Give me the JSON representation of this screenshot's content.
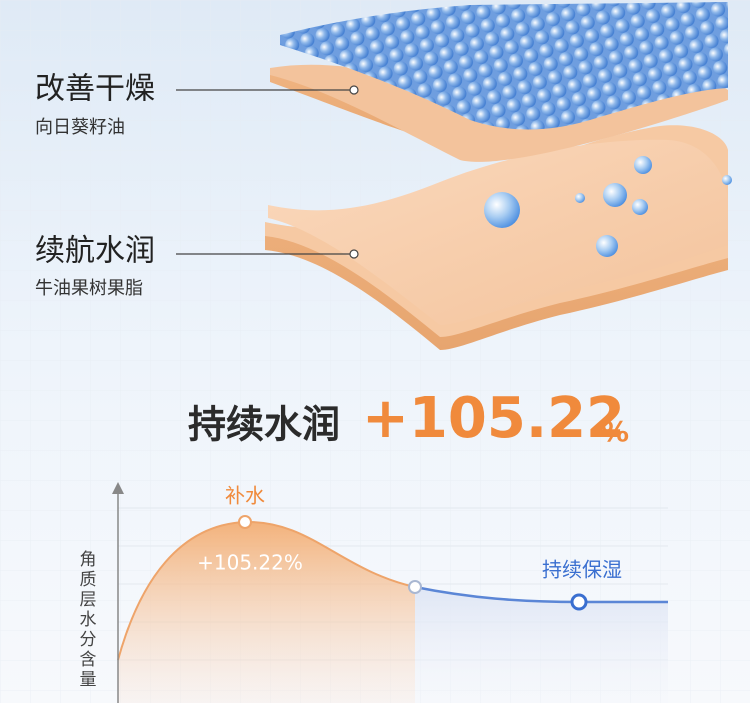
{
  "layers": [
    {
      "title": "改善干燥",
      "subtitle": "向日葵籽油"
    },
    {
      "title": "续航水润",
      "subtitle": "牛油果树果脂"
    }
  ],
  "headline": {
    "text": "持续水润",
    "number": "+105.22",
    "unit": "%"
  },
  "curve": {
    "peak_label": "补水",
    "peak_value": "+105.22%",
    "end_label": "持续保湿",
    "y_axis_label": [
      "角",
      "质",
      "层",
      "水",
      "分",
      "含",
      "量"
    ]
  }
}
